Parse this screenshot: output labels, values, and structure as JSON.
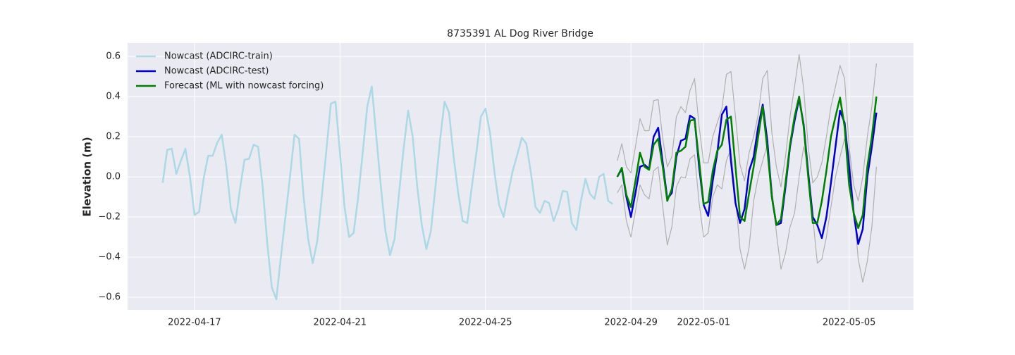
{
  "chart_data": {
    "type": "line",
    "title": "8735391 AL Dog River Bridge",
    "y_label": "Elevation (m)",
    "grid": true,
    "legend": "upper left",
    "xlim": [
      105.16,
      126.77
    ],
    "xticks": [
      {
        "value": 107,
        "label": "2022-04-17"
      },
      {
        "value": 111,
        "label": "2022-04-21"
      },
      {
        "value": 115,
        "label": "2022-04-25"
      },
      {
        "value": 119,
        "label": "2022-04-29"
      },
      {
        "value": 121,
        "label": "2022-05-01"
      },
      {
        "value": 125,
        "label": "2022-05-05"
      }
    ],
    "ylim": [
      -0.663,
      0.667
    ],
    "yticks": [
      {
        "value": -0.6,
        "label": "−0.6"
      },
      {
        "value": -0.4,
        "label": "−0.4"
      },
      {
        "value": -0.2,
        "label": "−0.2"
      },
      {
        "value": 0,
        "label": "0.0"
      },
      0.2,
      0.4,
      0.6
    ],
    "series": [
      {
        "name": "Nowcast (ADCIRC-train)",
        "color": "#add8e6",
        "width": 2.5,
        "x": [
          106.125,
          106.25,
          106.375,
          106.5,
          106.625,
          106.75,
          106.875,
          107,
          107.125,
          107.25,
          107.375,
          107.5,
          107.625,
          107.75,
          107.875,
          108,
          108.125,
          108.25,
          108.375,
          108.5,
          108.625,
          108.75,
          108.875,
          109,
          109.125,
          109.25,
          109.375,
          109.5,
          109.625,
          109.75,
          109.875,
          110,
          110.125,
          110.25,
          110.375,
          110.5,
          110.625,
          110.75,
          110.875,
          111,
          111.125,
          111.25,
          111.375,
          111.5,
          111.625,
          111.75,
          111.875,
          112,
          112.125,
          112.25,
          112.375,
          112.5,
          112.625,
          112.75,
          112.875,
          113,
          113.125,
          113.25,
          113.375,
          113.5,
          113.625,
          113.75,
          113.875,
          114,
          114.125,
          114.25,
          114.375,
          114.5,
          114.625,
          114.75,
          114.875,
          115,
          115.125,
          115.25,
          115.375,
          115.5,
          115.625,
          115.75,
          115.875,
          116,
          116.125,
          116.25,
          116.375,
          116.5,
          116.625,
          116.75,
          116.875,
          117,
          117.125,
          117.25,
          117.375,
          117.5,
          117.625,
          117.75,
          117.875,
          118,
          118.125,
          118.25,
          118.375,
          118.5
        ],
        "values": [
          -0.03,
          0.135,
          0.14,
          0.015,
          0.08,
          0.14,
          0.0,
          -0.19,
          -0.175,
          -0.01,
          0.105,
          0.105,
          0.17,
          0.21,
          0.05,
          -0.16,
          -0.23,
          -0.06,
          0.085,
          0.09,
          0.16,
          0.15,
          -0.05,
          -0.33,
          -0.55,
          -0.61,
          -0.4,
          -0.2,
          0.0,
          0.21,
          0.19,
          -0.1,
          -0.31,
          -0.43,
          -0.32,
          -0.1,
          0.13,
          0.365,
          0.375,
          0.12,
          -0.15,
          -0.3,
          -0.28,
          -0.1,
          0.12,
          0.35,
          0.45,
          0.2,
          -0.05,
          -0.27,
          -0.39,
          -0.31,
          -0.08,
          0.14,
          0.33,
          0.2,
          -0.05,
          -0.24,
          -0.36,
          -0.27,
          -0.05,
          0.18,
          0.375,
          0.32,
          0.1,
          -0.08,
          -0.22,
          -0.23,
          -0.05,
          0.12,
          0.3,
          0.34,
          0.22,
          0.02,
          -0.14,
          -0.2,
          -0.08,
          0.03,
          0.11,
          0.195,
          0.165,
          0.02,
          -0.15,
          -0.18,
          -0.12,
          -0.13,
          -0.22,
          -0.16,
          -0.07,
          -0.075,
          -0.23,
          -0.265,
          -0.12,
          -0.01,
          -0.085,
          -0.11,
          0.0,
          0.015,
          -0.12,
          -0.135
        ]
      },
      {
        "color": "#b0b0b0",
        "width": 1.2,
        "x": [
          118.625,
          118.75,
          118.875,
          119,
          119.125,
          119.25,
          119.375,
          119.5,
          119.625,
          119.75,
          119.875,
          120,
          120.125,
          120.25,
          120.375,
          120.5,
          120.625,
          120.75,
          120.875,
          121,
          121.125,
          121.25,
          121.375,
          121.5,
          121.625,
          121.75,
          121.875,
          122,
          122.125,
          122.25,
          122.375,
          122.5,
          122.625,
          122.75,
          122.875,
          123,
          123.125,
          123.25,
          123.375,
          123.5,
          123.625,
          123.75,
          123.875,
          124,
          124.125,
          124.25,
          124.375,
          124.5,
          124.625,
          124.75,
          124.875,
          125,
          125.125,
          125.25,
          125.375,
          125.5,
          125.625,
          125.75
        ],
        "values": [
          0.08,
          0.165,
          0.05,
          0.02,
          0.15,
          0.29,
          0.23,
          0.23,
          0.38,
          0.385,
          0.19,
          0.05,
          0.1,
          0.3,
          0.35,
          0.32,
          0.43,
          0.49,
          0.25,
          0.07,
          0.07,
          0.2,
          0.27,
          0.34,
          0.51,
          0.525,
          0.3,
          0.06,
          -0.02,
          0.12,
          0.2,
          0.31,
          0.49,
          0.53,
          0.22,
          0.05,
          -0.05,
          0.1,
          0.3,
          0.45,
          0.61,
          0.44,
          0.15,
          -0.03,
          0,
          0.07,
          0.2,
          0.35,
          0.45,
          0.555,
          0.49,
          0.15,
          -0.04,
          -0.12,
          0,
          0.2,
          0.35,
          0.565
        ]
      },
      {
        "color": "#b0b0b0",
        "width": 1.2,
        "x": [
          118.625,
          118.75,
          118.875,
          119,
          119.125,
          119.25,
          119.375,
          119.5,
          119.625,
          119.75,
          119.875,
          120,
          120.125,
          120.25,
          120.375,
          120.5,
          120.625,
          120.75,
          120.875,
          121,
          121.125,
          121.25,
          121.375,
          121.5,
          121.625,
          121.75,
          121.875,
          122,
          122.125,
          122.25,
          122.375,
          122.5,
          122.625,
          122.75,
          122.875,
          123,
          123.125,
          123.25,
          123.375,
          123.5,
          123.625,
          123.75,
          123.875,
          124,
          124.125,
          124.25,
          124.375,
          124.5,
          124.625,
          124.75,
          124.875,
          125,
          125.125,
          125.25,
          125.375,
          125.5,
          125.625,
          125.75
        ],
        "values": [
          -0.08,
          -0.04,
          -0.22,
          -0.3,
          -0.17,
          -0.04,
          -0.09,
          -0.11,
          0.03,
          0.05,
          -0.15,
          -0.34,
          -0.25,
          -0.05,
          0.0,
          -0.005,
          0.09,
          0.11,
          -0.13,
          -0.3,
          -0.28,
          -0.1,
          -0.04,
          -0.06,
          0.08,
          0.14,
          -0.1,
          -0.36,
          -0.46,
          -0.35,
          -0.12,
          0.0,
          0.08,
          0.16,
          -0.05,
          -0.28,
          -0.46,
          -0.38,
          -0.25,
          -0.18,
          0,
          0.15,
          0.05,
          -0.2,
          -0.43,
          -0.41,
          -0.3,
          -0.15,
          0,
          0.1,
          0.19,
          0.12,
          -0.15,
          -0.41,
          -0.525,
          -0.42,
          -0.25,
          0.05
        ]
      },
      {
        "name": "Nowcast (ADCIRC-test)",
        "color": "#0000cd",
        "width": 2.5,
        "x": [
          118.625,
          118.75,
          118.875,
          119,
          119.125,
          119.25,
          119.375,
          119.5,
          119.625,
          119.75,
          119.875,
          120,
          120.125,
          120.25,
          120.375,
          120.5,
          120.625,
          120.75,
          120.875,
          121,
          121.125,
          121.25,
          121.375,
          121.5,
          121.625,
          121.75,
          121.875,
          122,
          122.125,
          122.25,
          122.375,
          122.5,
          122.625,
          122.75,
          122.875,
          123,
          123.125,
          123.25,
          123.375,
          123.5,
          123.625,
          123.75,
          123.875,
          124,
          124.125,
          124.25,
          124.375,
          124.5,
          124.625,
          124.75,
          124.875,
          125,
          125.125,
          125.25,
          125.375,
          125.5,
          125.625,
          125.75
        ],
        "values": [
          0.0,
          0.04,
          -0.1,
          -0.2,
          -0.08,
          0.05,
          0.06,
          0.04,
          0.2,
          0.245,
          0.07,
          -0.11,
          -0.08,
          0.1,
          0.18,
          0.19,
          0.305,
          0.29,
          0.05,
          -0.14,
          -0.195,
          -0.02,
          0.12,
          0.31,
          0.35,
          0.08,
          -0.13,
          -0.23,
          -0.16,
          0.03,
          0.1,
          0.25,
          0.36,
          0.18,
          -0.1,
          -0.24,
          -0.23,
          -0.05,
          0.15,
          0.28,
          0.39,
          0.26,
          0.02,
          -0.2,
          -0.24,
          -0.305,
          -0.2,
          -0.03,
          0.15,
          0.33,
          0.27,
          0.05,
          -0.18,
          -0.335,
          -0.26,
          0.0,
          0.15,
          0.32
        ]
      },
      {
        "name": "Forecast (ML with nowcast forcing)",
        "color": "#008000",
        "width": 2.5,
        "x": [
          118.625,
          118.75,
          118.875,
          119,
          119.125,
          119.25,
          119.375,
          119.5,
          119.625,
          119.75,
          119.875,
          120,
          120.125,
          120.25,
          120.375,
          120.5,
          120.625,
          120.75,
          120.875,
          121,
          121.125,
          121.25,
          121.375,
          121.5,
          121.625,
          121.75,
          121.875,
          122,
          122.125,
          122.25,
          122.375,
          122.5,
          122.625,
          122.75,
          122.875,
          123,
          123.125,
          123.25,
          123.375,
          123.5,
          123.625,
          123.75,
          123.875,
          124,
          124.125,
          124.25,
          124.375,
          124.5,
          124.625,
          124.75,
          124.875,
          125,
          125.125,
          125.25,
          125.375,
          125.5,
          125.625,
          125.75
        ],
        "values": [
          0.0,
          0.045,
          -0.09,
          -0.15,
          -0.02,
          0.12,
          0.05,
          0.035,
          0.16,
          0.19,
          0.05,
          -0.12,
          -0.06,
          0.12,
          0.13,
          0.15,
          0.28,
          0.285,
          0.08,
          -0.135,
          -0.125,
          0.03,
          0.13,
          0.16,
          0.285,
          0.3,
          0.05,
          -0.2,
          -0.22,
          -0.08,
          0.05,
          0.2,
          0.35,
          0.14,
          -0.1,
          -0.24,
          -0.21,
          -0.03,
          0.16,
          0.3,
          0.4,
          0.25,
          0.0,
          -0.23,
          -0.23,
          -0.12,
          0.03,
          0.2,
          0.3,
          0.395,
          0.25,
          -0.04,
          -0.18,
          -0.255,
          -0.19,
          0.05,
          0.2,
          0.4
        ]
      }
    ]
  }
}
